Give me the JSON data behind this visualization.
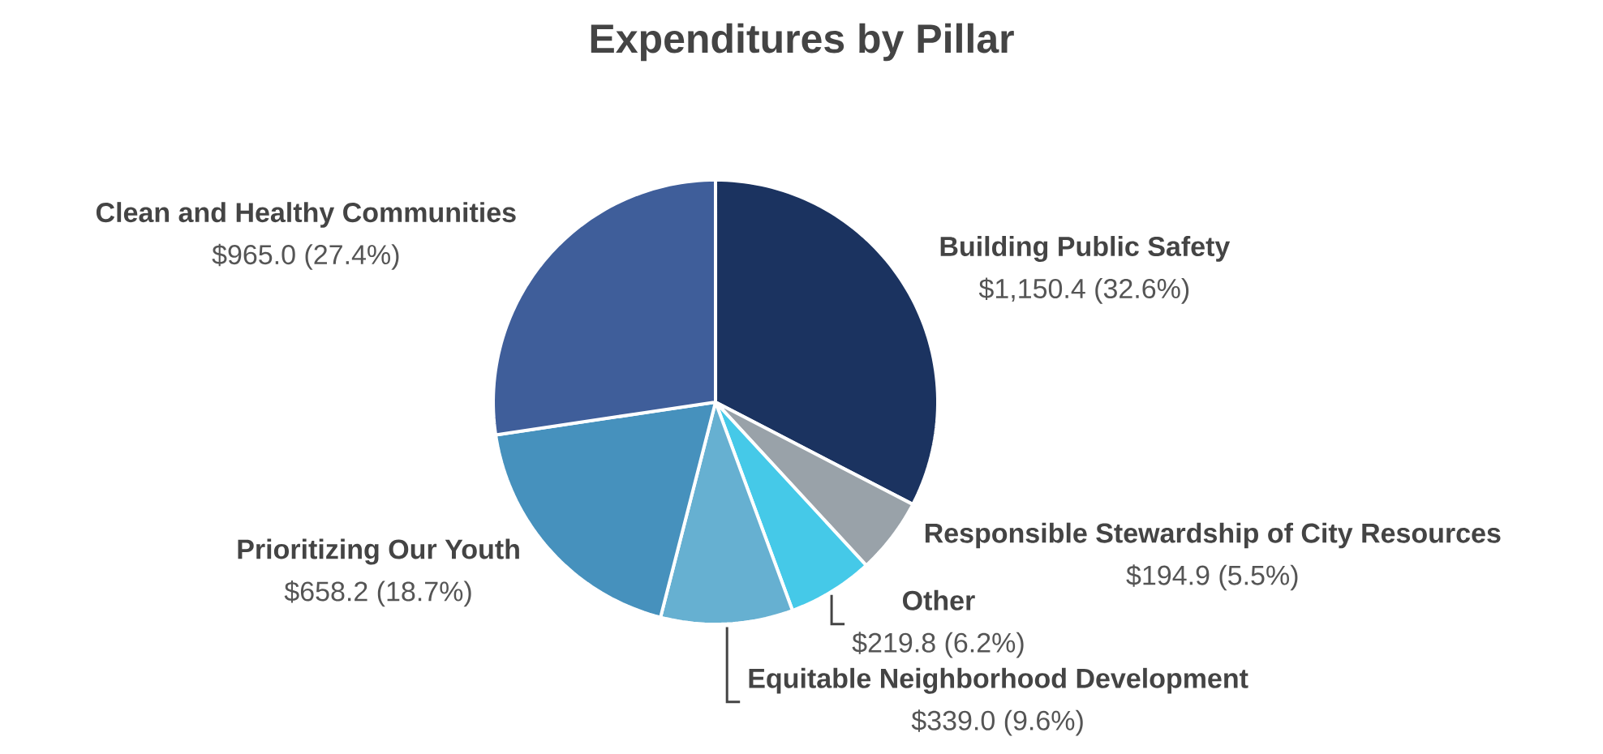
{
  "chart_data": {
    "type": "pie",
    "title": "Expenditures by Pillar",
    "categories": [
      "Building Public Safety",
      "Responsible Stewardship of City Resources",
      "Other",
      "Equitable Neighborhood Development",
      "Prioritizing Our Youth",
      "Clean and Healthy Communities"
    ],
    "values": [
      1150.4,
      194.9,
      219.8,
      339.0,
      658.2,
      965.0
    ],
    "value_labels": [
      "$1,150.4 (32.6%)",
      "$194.9 (5.5%)",
      "$219.8 (6.2%)",
      "$339.0 (9.6%)",
      "$658.2 (18.7%)",
      "$965.0 (27.4%)"
    ],
    "colors": [
      "#1b3360",
      "#99a2a9",
      "#45c9e8",
      "#66b0d1",
      "#4691bd",
      "#3f5e9a"
    ]
  }
}
